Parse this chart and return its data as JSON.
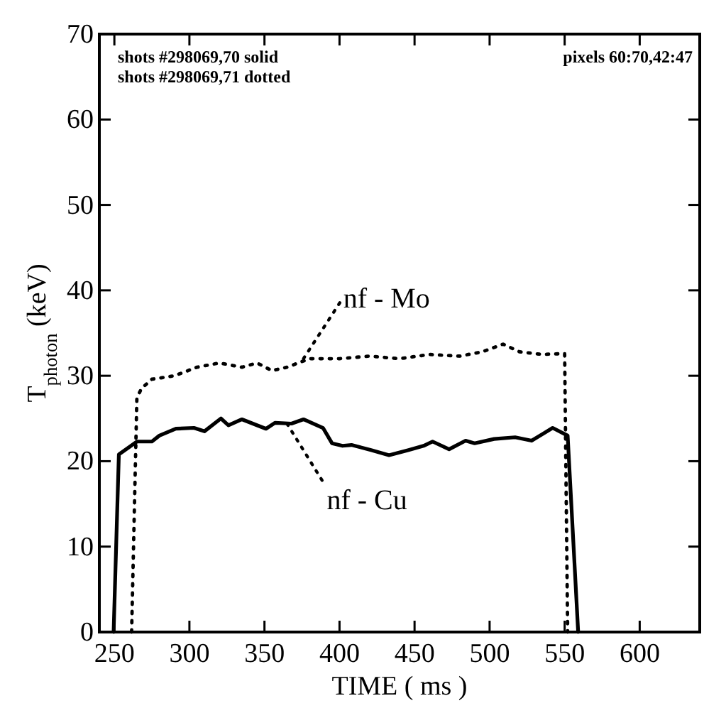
{
  "chart_data": {
    "type": "line",
    "xlabel": "TIME ( ms )",
    "ylabel": "T$_{photon}$ (keV)",
    "xlim": [
      240,
      640
    ],
    "xticks": [
      250,
      300,
      350,
      400,
      450,
      500,
      550,
      600
    ],
    "ylim": [
      0,
      70
    ],
    "yticks": [
      0,
      10,
      20,
      30,
      40,
      50,
      60,
      70
    ],
    "grid": false,
    "marker": "none",
    "series": [
      {
        "color": "#000000",
        "line_style": "solid",
        "x": [
          249.5,
          253,
          265,
          275,
          280,
          291,
          303,
          310,
          321,
          326,
          335,
          351,
          357,
          368,
          376,
          389,
          395,
          402,
          408,
          421,
          433,
          446,
          456,
          462,
          473,
          484,
          490,
          503,
          517,
          528,
          542,
          552,
          559
        ],
        "values": [
          0,
          20.8,
          22.3,
          22.3,
          23,
          23.8,
          23.9,
          23.5,
          25,
          24.2,
          24.9,
          23.8,
          24.5,
          24.4,
          24.9,
          23.9,
          22.1,
          21.8,
          21.9,
          21.3,
          20.7,
          21.3,
          21.8,
          22.3,
          21.4,
          22.4,
          22.1,
          22.6,
          22.8,
          22.4,
          23.9,
          23,
          0
        ]
      },
      {
        "color": "#000000",
        "line_style": "dotted",
        "x": [
          261.5,
          265,
          268,
          275,
          290,
          305,
          320,
          335,
          345,
          355,
          365,
          380,
          400,
          420,
          440,
          460,
          480,
          495,
          509,
          520,
          535,
          550,
          552
        ],
        "values": [
          0,
          27.4,
          28.5,
          29.6,
          30,
          31,
          31.5,
          31,
          31.5,
          30.6,
          31,
          32,
          32,
          32.3,
          32,
          32.5,
          32.3,
          32.8,
          33.7,
          32.8,
          32.5,
          32.6,
          0
        ]
      }
    ],
    "annotations": [
      {
        "text": "nf - Mo",
        "x": 376,
        "y": 32
      },
      {
        "text": "nf - Cu",
        "x": 365,
        "y": 24.4
      },
      "shots #298069,70 solid",
      "shots #298069,71 dotted",
      "pixels 60:70,42:47"
    ]
  }
}
